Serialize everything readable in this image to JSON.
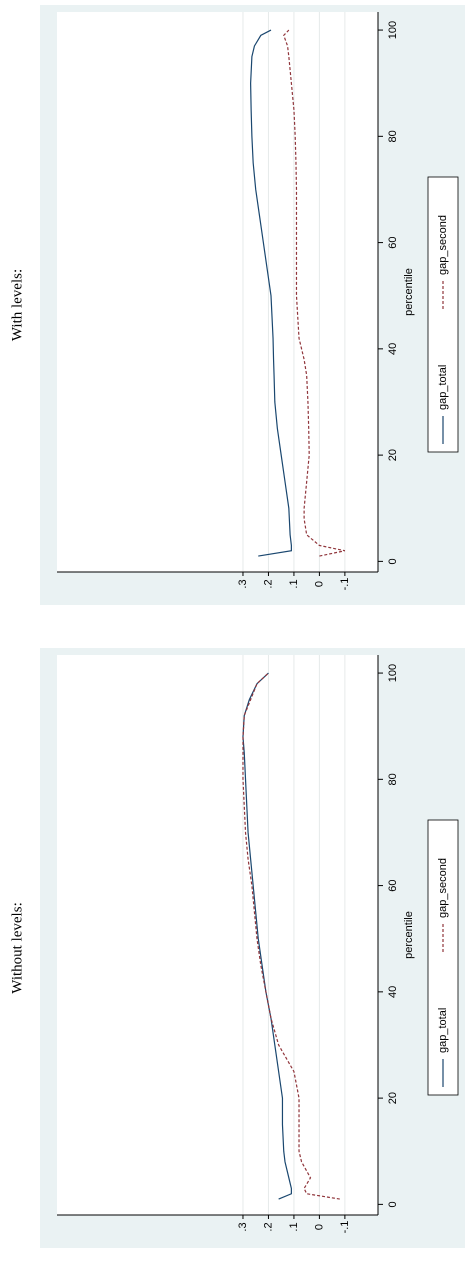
{
  "chart_data": [
    {
      "type": "line",
      "title": "Without levels:",
      "x_label": "percentile",
      "x": [
        1,
        2,
        3,
        5,
        8,
        10,
        15,
        20,
        25,
        30,
        35,
        40,
        45,
        50,
        55,
        60,
        65,
        70,
        75,
        80,
        85,
        88,
        92,
        95,
        98,
        100
      ],
      "series": [
        {
          "name": "gap_total",
          "color": "#1a476f",
          "dash": false,
          "values": [
            0.16,
            0.11,
            0.11,
            0.12,
            0.135,
            0.14,
            0.145,
            0.145,
            0.16,
            0.175,
            0.19,
            0.21,
            0.225,
            0.24,
            0.25,
            0.26,
            0.27,
            0.28,
            0.285,
            0.29,
            0.295,
            0.3,
            0.295,
            0.275,
            0.245,
            0.2
          ]
        },
        {
          "name": "gap_second",
          "color": "#90353b",
          "dash": true,
          "values": [
            -0.08,
            0.05,
            0.06,
            0.035,
            0.07,
            0.08,
            0.08,
            0.08,
            0.1,
            0.16,
            0.19,
            0.21,
            0.23,
            0.245,
            0.255,
            0.265,
            0.28,
            0.29,
            0.295,
            0.3,
            0.3,
            0.3,
            0.295,
            0.27,
            0.245,
            0.2
          ]
        }
      ],
      "xlim": [
        -2,
        103.4
      ],
      "xticks": [
        0,
        20,
        40,
        60,
        80,
        100
      ],
      "ylim": [
        -0.23,
        1.03
      ],
      "yticks": [
        {
          "value": -0.1,
          "label": "-.1"
        },
        0,
        {
          "value": 0.1,
          "label": ".1"
        },
        {
          "value": 0.2,
          "label": ".2"
        },
        {
          "value": 0.3,
          "label": ".3"
        }
      ],
      "grid": true
    },
    {
      "type": "line",
      "title": "With levels:",
      "x_label": "percentile",
      "x": [
        1,
        2,
        3,
        5,
        8,
        10,
        15,
        20,
        25,
        30,
        35,
        38,
        42,
        50,
        55,
        60,
        65,
        70,
        75,
        80,
        85,
        90,
        95,
        97,
        99,
        100
      ],
      "series": [
        {
          "name": "gap_total",
          "color": "#1a476f",
          "dash": false,
          "values": [
            0.24,
            0.11,
            0.11,
            0.115,
            0.118,
            0.12,
            0.135,
            0.15,
            0.165,
            0.175,
            0.178,
            0.18,
            0.182,
            0.19,
            0.205,
            0.22,
            0.235,
            0.25,
            0.26,
            0.265,
            0.268,
            0.27,
            0.265,
            0.255,
            0.23,
            0.19
          ]
        },
        {
          "name": "gap_second",
          "color": "#90353b",
          "dash": true,
          "values": [
            0.0,
            -0.1,
            0.0,
            0.05,
            0.06,
            0.06,
            0.05,
            0.04,
            0.042,
            0.045,
            0.05,
            0.06,
            0.08,
            0.09,
            0.09,
            0.09,
            0.09,
            0.09,
            0.092,
            0.095,
            0.1,
            0.11,
            0.12,
            0.125,
            0.14,
            0.12
          ]
        }
      ],
      "xlim": [
        -2,
        103.4
      ],
      "xticks": [
        0,
        20,
        40,
        60,
        80,
        100
      ],
      "ylim": [
        -0.23,
        1.03
      ],
      "yticks": [
        {
          "value": -0.1,
          "label": "-.1"
        },
        0,
        {
          "value": 0.1,
          "label": ".1"
        },
        {
          "value": 0.2,
          "label": ".2"
        },
        {
          "value": 0.3,
          "label": ".3"
        }
      ],
      "grid": true
    }
  ]
}
